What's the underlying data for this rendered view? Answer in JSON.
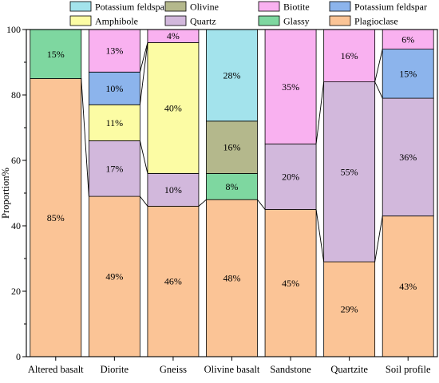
{
  "chart_data": {
    "type": "bar",
    "stacked": true,
    "title": "",
    "xlabel": "",
    "ylabel": "Proportion%",
    "ylim": [
      0,
      100
    ],
    "yticks": [
      0,
      20,
      40,
      60,
      80,
      100
    ],
    "grid": false,
    "legend_position": "top",
    "categories": [
      "Altered basalt",
      "Diorite",
      "Gneiss",
      "Olivine basalt",
      "Sandstone",
      "Quartzite",
      "Soil profile"
    ],
    "legend": [
      {
        "name": "Potassium feldspar",
        "color": "#a3e3ec"
      },
      {
        "name": "Olivine",
        "color": "#b4b88c"
      },
      {
        "name": "Biotite",
        "color": "#f9b1f0"
      },
      {
        "name": "Potassium feldspar",
        "color": "#8cb4ec"
      },
      {
        "name": "Amphibole",
        "color": "#fcfca4"
      },
      {
        "name": "Quartz",
        "color": "#d2b8dc"
      },
      {
        "name": "Glassy",
        "color": "#7ed7a0"
      },
      {
        "name": "Plagioclase",
        "color": "#fbc496"
      }
    ],
    "bars": [
      {
        "category": "Altered basalt",
        "segments": [
          {
            "mineral": "Plagioclase",
            "color": "#fbc496",
            "value": 85,
            "label": "85%"
          },
          {
            "mineral": "Glassy",
            "color": "#7ed7a0",
            "value": 15,
            "label": "15%"
          }
        ]
      },
      {
        "category": "Diorite",
        "segments": [
          {
            "mineral": "Plagioclase",
            "color": "#fbc496",
            "value": 49,
            "label": "49%"
          },
          {
            "mineral": "Quartz",
            "color": "#d2b8dc",
            "value": 17,
            "label": "17%"
          },
          {
            "mineral": "Amphibole",
            "color": "#fcfca4",
            "value": 11,
            "label": "11%"
          },
          {
            "mineral": "Potassium feldspar",
            "color": "#8cb4ec",
            "value": 10,
            "label": "10%"
          },
          {
            "mineral": "Biotite",
            "color": "#f9b1f0",
            "value": 13,
            "label": "13%"
          }
        ]
      },
      {
        "category": "Gneiss",
        "segments": [
          {
            "mineral": "Plagioclase",
            "color": "#fbc496",
            "value": 46,
            "label": "46%"
          },
          {
            "mineral": "Quartz",
            "color": "#d2b8dc",
            "value": 10,
            "label": "10%"
          },
          {
            "mineral": "Amphibole",
            "color": "#fcfca4",
            "value": 40,
            "label": "40%"
          },
          {
            "mineral": "Biotite",
            "color": "#f9b1f0",
            "value": 4,
            "label": "4%"
          }
        ]
      },
      {
        "category": "Olivine basalt",
        "segments": [
          {
            "mineral": "Plagioclase",
            "color": "#fbc496",
            "value": 48,
            "label": "48%"
          },
          {
            "mineral": "Glassy",
            "color": "#7ed7a0",
            "value": 8,
            "label": "8%"
          },
          {
            "mineral": "Olivine",
            "color": "#b4b88c",
            "value": 16,
            "label": "16%"
          },
          {
            "mineral": "Potassium feldspar",
            "color": "#a3e3ec",
            "value": 28,
            "label": "28%"
          }
        ]
      },
      {
        "category": "Sandstone",
        "segments": [
          {
            "mineral": "Plagioclase",
            "color": "#fbc496",
            "value": 45,
            "label": "45%"
          },
          {
            "mineral": "Quartz",
            "color": "#d2b8dc",
            "value": 20,
            "label": "20%"
          },
          {
            "mineral": "Biotite",
            "color": "#f9b1f0",
            "value": 35,
            "label": "35%"
          }
        ]
      },
      {
        "category": "Quartzite",
        "segments": [
          {
            "mineral": "Plagioclase",
            "color": "#fbc496",
            "value": 29,
            "label": "29%"
          },
          {
            "mineral": "Quartz",
            "color": "#d2b8dc",
            "value": 55,
            "label": "55%"
          },
          {
            "mineral": "Biotite",
            "color": "#f9b1f0",
            "value": 16,
            "label": "16%"
          }
        ]
      },
      {
        "category": "Soil profile",
        "segments": [
          {
            "mineral": "Plagioclase",
            "color": "#fbc496",
            "value": 43,
            "label": "43%"
          },
          {
            "mineral": "Quartz",
            "color": "#d2b8dc",
            "value": 36,
            "label": "36%"
          },
          {
            "mineral": "Potassium feldspar",
            "color": "#8cb4ec",
            "value": 15,
            "label": "15%"
          },
          {
            "mineral": "Biotite",
            "color": "#f9b1f0",
            "value": 6,
            "label": "6%"
          }
        ]
      }
    ]
  }
}
